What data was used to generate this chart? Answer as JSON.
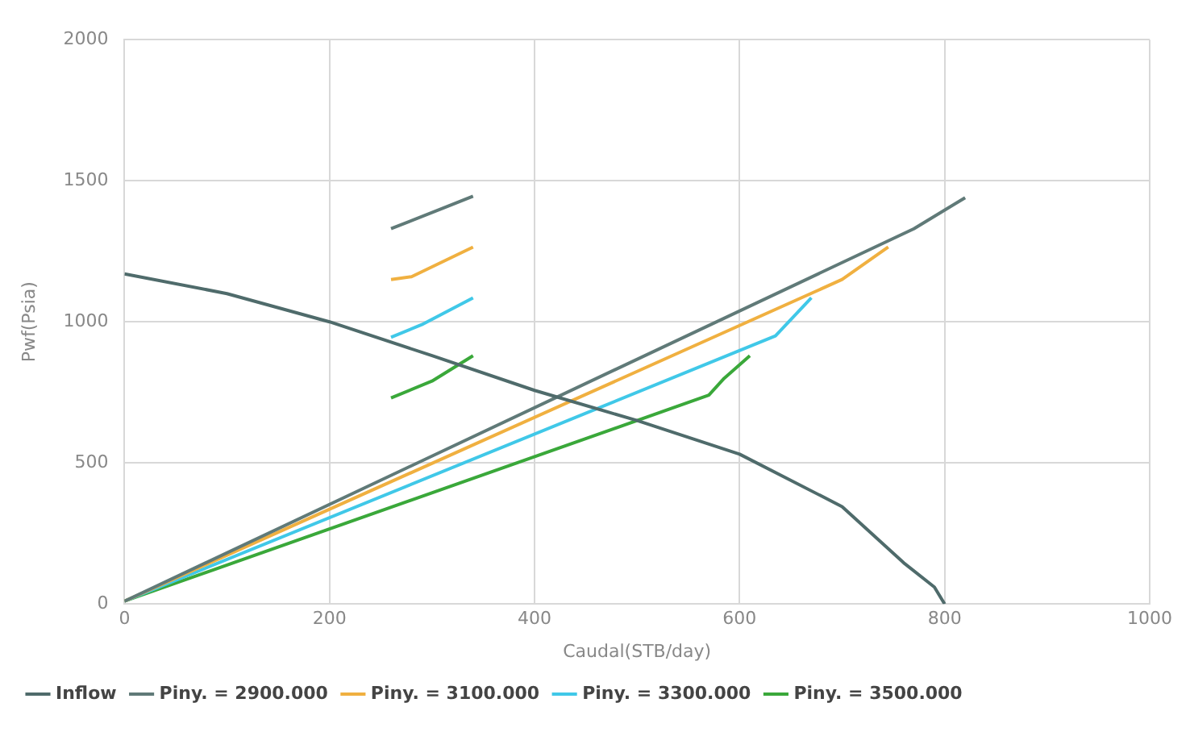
{
  "chart_data": {
    "type": "line",
    "xlabel": "Caudal(STB/day)",
    "ylabel": "Pwf(Psia)",
    "xlim": [
      0,
      1000
    ],
    "xticks": [
      0,
      200,
      400,
      600,
      800,
      1000
    ],
    "ylim": [
      0,
      2000
    ],
    "yticks": [
      0,
      500,
      1000,
      1500,
      2000
    ],
    "grid": true,
    "legend": "bottom",
    "marker": "none",
    "line_style": "solid",
    "series": [
      {
        "name": "Inflow",
        "color": "#4f6b6b",
        "x": [
          0,
          100,
          200,
          300,
          400,
          500,
          600,
          700,
          760,
          790,
          800
        ],
        "values": [
          1170,
          1100,
          1000,
          880,
          757,
          650,
          531,
          345,
          146,
          60,
          0
        ]
      },
      {
        "name": "Piny. = 2900.000",
        "color": "#607a78",
        "x": [
          0,
          770,
          820,
          null,
          260,
          340
        ],
        "values": [
          10,
          1330,
          1440,
          null,
          1330,
          1445
        ]
      },
      {
        "name": "Piny. = 3100.000",
        "color": "#f0b040",
        "x": [
          0,
          700,
          745,
          null,
          260,
          280,
          340
        ],
        "values": [
          10,
          1150,
          1265,
          null,
          1150,
          1160,
          1265
        ]
      },
      {
        "name": "Piny. = 3300.000",
        "color": "#40c8e8",
        "x": [
          0,
          635,
          670,
          null,
          260,
          290,
          340
        ],
        "values": [
          10,
          950,
          1085,
          null,
          945,
          990,
          1085
        ]
      },
      {
        "name": "Piny. = 3500.000",
        "color": "#3aa83a",
        "x": [
          0,
          570,
          585,
          610,
          null,
          260,
          300,
          340
        ],
        "values": [
          10,
          740,
          800,
          880,
          null,
          730,
          790,
          880
        ]
      }
    ]
  }
}
